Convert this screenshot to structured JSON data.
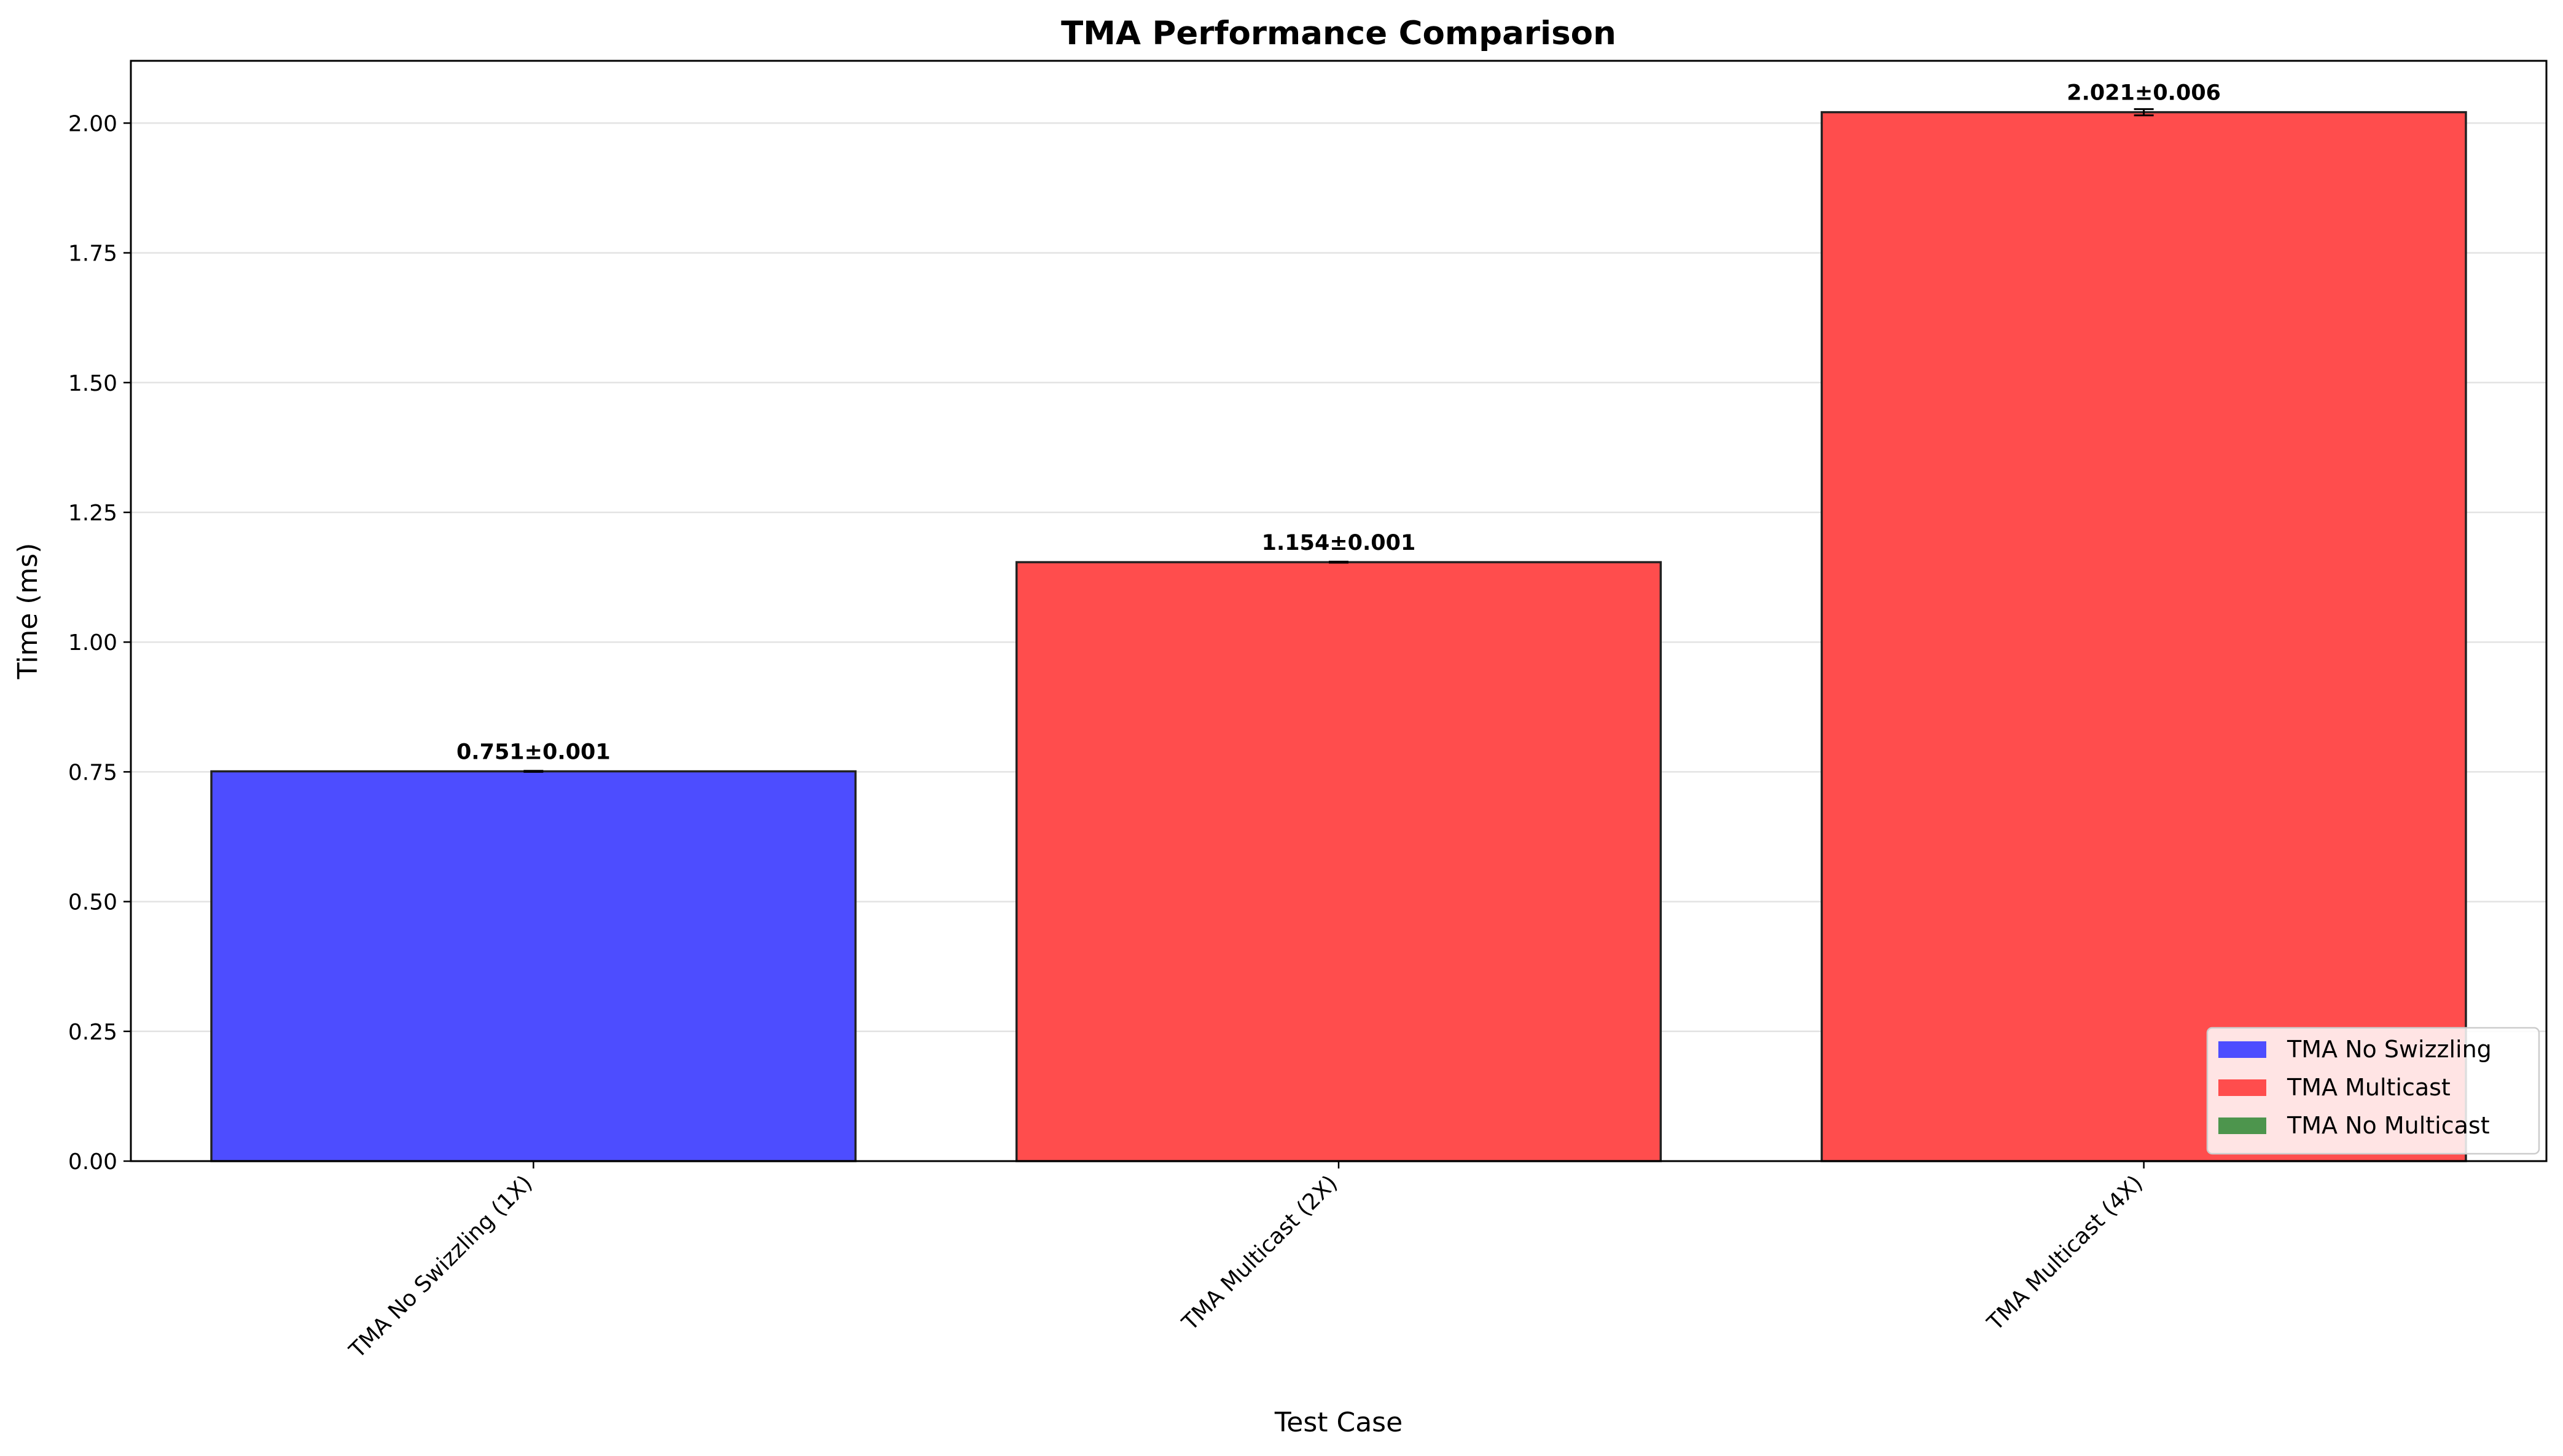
{
  "chart_data": {
    "type": "bar",
    "title": "TMA Performance Comparison",
    "xlabel": "Test Case",
    "ylabel": "Time (ms)",
    "ylim": [
      0,
      2.12
    ],
    "yticks": [
      0.0,
      0.25,
      0.5,
      0.75,
      1.0,
      1.25,
      1.5,
      1.75,
      2.0
    ],
    "ytick_labels": [
      "0.00",
      "0.25",
      "0.50",
      "0.75",
      "1.00",
      "1.25",
      "1.50",
      "1.75",
      "2.00"
    ],
    "grid": "y",
    "categories": [
      "TMA No Swizzling (1X)",
      "TMA Multicast (2X)",
      "TMA Multicast (4X)"
    ],
    "values": [
      0.751,
      1.154,
      2.021
    ],
    "errors": [
      0.001,
      0.001,
      0.006
    ],
    "bar_labels": [
      "0.751±0.001",
      "1.154±0.001",
      "2.021±0.006"
    ],
    "bar_colors": [
      "#4d4dff",
      "#ff4d4d",
      "#ff4d4d"
    ],
    "legend": {
      "placement": "lower-right",
      "entries": [
        {
          "label": "TMA No Swizzling",
          "color": "#4d4dff"
        },
        {
          "label": "TMA Multicast",
          "color": "#ff4d4d"
        },
        {
          "label": "TMA No Multicast",
          "color": "#4d954d"
        }
      ]
    }
  }
}
